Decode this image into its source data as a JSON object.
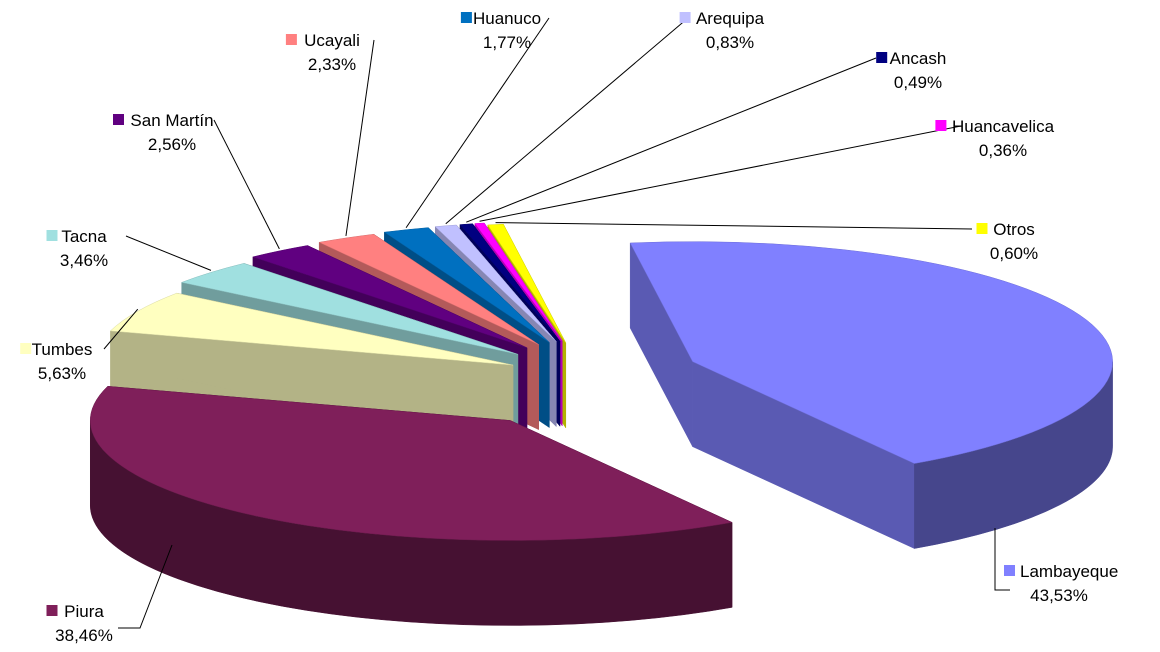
{
  "chart_data": {
    "type": "pie",
    "style": "3d-exploded",
    "title": "",
    "series": [
      {
        "name": "Lambayeque",
        "value": 43.53,
        "label": "43,53%",
        "color": "#8080ff"
      },
      {
        "name": "Piura",
        "value": 38.46,
        "label": "38,46%",
        "color": "#7f1f5a"
      },
      {
        "name": "Tumbes",
        "value": 5.63,
        "label": "5,63%",
        "color": "#ffffc0"
      },
      {
        "name": "Tacna",
        "value": 3.46,
        "label": "3,46%",
        "color": "#a0e0e0"
      },
      {
        "name": "San Martín",
        "value": 2.56,
        "label": "2,56%",
        "color": "#600080"
      },
      {
        "name": "Ucayali",
        "value": 2.33,
        "label": "2,33%",
        "color": "#ff8080"
      },
      {
        "name": "Huanuco",
        "value": 1.77,
        "label": "1,77%",
        "color": "#0070c0"
      },
      {
        "name": "Arequipa",
        "value": 0.83,
        "label": "0,83%",
        "color": "#c0c0ff"
      },
      {
        "name": "Ancash",
        "value": 0.49,
        "label": "0,49%",
        "color": "#000080"
      },
      {
        "name": "Huancavelica",
        "value": 0.36,
        "label": "0,36%",
        "color": "#ff00ff"
      },
      {
        "name": "Otros",
        "value": 0.6,
        "label": "0,60%",
        "color": "#ffff00"
      }
    ],
    "legend": "per-slice callouts"
  }
}
